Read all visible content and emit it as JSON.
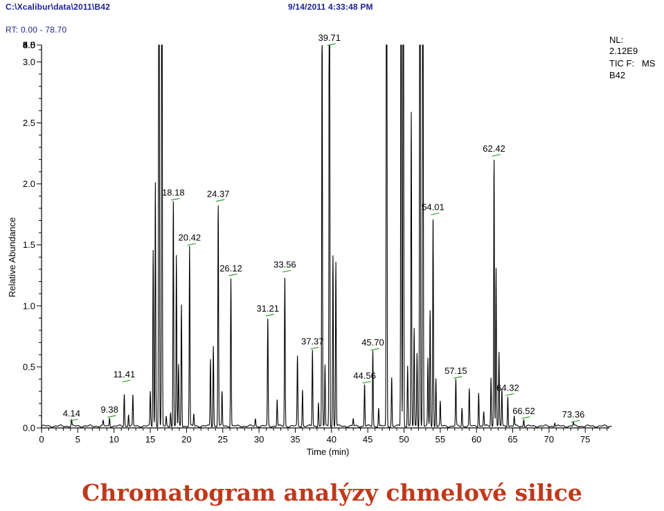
{
  "header": {
    "file_path": "C:\\Xcalibur\\data\\2011\\B42",
    "timestamp": "9/14/2011 4:33:48 PM",
    "rt_label": "RT:",
    "rt_range": "0.00 - 78.70"
  },
  "info_box": {
    "nl_label": "NL:",
    "nl_value": "2.12E9",
    "tic_label": "TIC F:",
    "tic_value": "MS",
    "sample": "B42"
  },
  "caption": "Chromatogram analýzy chmelové silice",
  "chart_data": {
    "type": "line",
    "title": "",
    "xlabel": "Time (min)",
    "ylabel": "Relative Abundance",
    "xlim": [
      0,
      78.7
    ],
    "ylim": [
      0,
      6.2
    ],
    "x_ticks": [
      0,
      5,
      10,
      15,
      20,
      25,
      30,
      35,
      40,
      45,
      50,
      55,
      60,
      65,
      70,
      75
    ],
    "y_ticks": [
      0.0,
      0.5,
      1.0,
      1.5,
      2.0,
      2.5,
      3.0,
      3.5,
      4.0,
      4.5,
      5.0,
      5.5,
      6.0
    ],
    "peaks": [
      {
        "rt": 4.14,
        "h": 0.05
      },
      {
        "rt": 8.5,
        "h": 0.04
      },
      {
        "rt": 9.38,
        "h": 0.07
      },
      {
        "rt": 11.41,
        "h": 0.27
      },
      {
        "rt": 12.0,
        "h": 0.1
      },
      {
        "rt": 12.6,
        "h": 0.25
      },
      {
        "rt": 15.0,
        "h": 0.28
      },
      {
        "rt": 15.4,
        "h": 1.45
      },
      {
        "rt": 15.7,
        "h": 2.0
      },
      {
        "rt": 16.2,
        "h": 6.5
      },
      {
        "rt": 16.6,
        "h": 6.5
      },
      {
        "rt": 17.2,
        "h": 0.08
      },
      {
        "rt": 17.8,
        "h": 0.12
      },
      {
        "rt": 18.18,
        "h": 1.85
      },
      {
        "rt": 18.6,
        "h": 1.4
      },
      {
        "rt": 18.9,
        "h": 0.5
      },
      {
        "rt": 19.3,
        "h": 1.0
      },
      {
        "rt": 20.42,
        "h": 1.48
      },
      {
        "rt": 21.0,
        "h": 0.1
      },
      {
        "rt": 23.3,
        "h": 0.55
      },
      {
        "rt": 23.7,
        "h": 0.66
      },
      {
        "rt": 24.37,
        "h": 1.82
      },
      {
        "rt": 24.9,
        "h": 0.28
      },
      {
        "rt": 26.12,
        "h": 1.22
      },
      {
        "rt": 29.5,
        "h": 0.06
      },
      {
        "rt": 31.21,
        "h": 0.89
      },
      {
        "rt": 32.5,
        "h": 0.22
      },
      {
        "rt": 33.56,
        "h": 1.24
      },
      {
        "rt": 35.3,
        "h": 0.57
      },
      {
        "rt": 36.0,
        "h": 0.3
      },
      {
        "rt": 37.37,
        "h": 0.63
      },
      {
        "rt": 38.2,
        "h": 0.2
      },
      {
        "rt": 38.7,
        "h": 3.45
      },
      {
        "rt": 39.1,
        "h": 0.5
      },
      {
        "rt": 39.71,
        "h": 5.95
      },
      {
        "rt": 40.2,
        "h": 1.4
      },
      {
        "rt": 40.6,
        "h": 1.35
      },
      {
        "rt": 43.0,
        "h": 0.06
      },
      {
        "rt": 44.56,
        "h": 0.35
      },
      {
        "rt": 45.7,
        "h": 0.62
      },
      {
        "rt": 46.5,
        "h": 0.15
      },
      {
        "rt": 47.6,
        "h": 6.5
      },
      {
        "rt": 48.3,
        "h": 0.4
      },
      {
        "rt": 49.6,
        "h": 5.5
      },
      {
        "rt": 49.9,
        "h": 6.5
      },
      {
        "rt": 50.5,
        "h": 0.5
      },
      {
        "rt": 51.0,
        "h": 2.57
      },
      {
        "rt": 51.4,
        "h": 0.8
      },
      {
        "rt": 51.8,
        "h": 0.6
      },
      {
        "rt": 52.2,
        "h": 6.5
      },
      {
        "rt": 52.6,
        "h": 6.5
      },
      {
        "rt": 53.3,
        "h": 0.55
      },
      {
        "rt": 53.6,
        "h": 0.95
      },
      {
        "rt": 54.01,
        "h": 1.73
      },
      {
        "rt": 54.4,
        "h": 0.4
      },
      {
        "rt": 55.0,
        "h": 0.2
      },
      {
        "rt": 57.15,
        "h": 0.38
      },
      {
        "rt": 58.0,
        "h": 0.15
      },
      {
        "rt": 59.0,
        "h": 0.3
      },
      {
        "rt": 60.3,
        "h": 0.28
      },
      {
        "rt": 61.0,
        "h": 0.12
      },
      {
        "rt": 62.0,
        "h": 0.4
      },
      {
        "rt": 62.42,
        "h": 2.2
      },
      {
        "rt": 62.7,
        "h": 1.3
      },
      {
        "rt": 63.1,
        "h": 0.6
      },
      {
        "rt": 63.5,
        "h": 0.3
      },
      {
        "rt": 64.32,
        "h": 0.25
      },
      {
        "rt": 65.2,
        "h": 0.08
      },
      {
        "rt": 66.52,
        "h": 0.06
      },
      {
        "rt": 70.8,
        "h": 0.03
      },
      {
        "rt": 73.36,
        "h": 0.03
      }
    ],
    "annotations": [
      {
        "label": "4.14",
        "rt": 4.14,
        "y": 0.06
      },
      {
        "label": "9.38",
        "rt": 9.38,
        "y": 0.09
      },
      {
        "label": "11.41",
        "rt": 11.41,
        "y": 0.38
      },
      {
        "label": "18.18",
        "rt": 18.18,
        "y": 1.87
      },
      {
        "label": "20.42",
        "rt": 20.42,
        "y": 1.5
      },
      {
        "label": "24.37",
        "rt": 24.37,
        "y": 1.86
      },
      {
        "label": "26.12",
        "rt": 26.12,
        "y": 1.25
      },
      {
        "label": "31.21",
        "rt": 31.21,
        "y": 0.92
      },
      {
        "label": "33.56",
        "rt": 33.56,
        "y": 1.28
      },
      {
        "label": "37.37",
        "rt": 37.37,
        "y": 0.65
      },
      {
        "label": "39.71",
        "rt": 39.71,
        "y": 5.98
      },
      {
        "label": "44.56",
        "rt": 44.56,
        "y": 0.37
      },
      {
        "label": "45.70",
        "rt": 45.7,
        "y": 0.64
      },
      {
        "label": "54.01",
        "rt": 54.01,
        "y": 1.75
      },
      {
        "label": "57.15",
        "rt": 57.15,
        "y": 0.41
      },
      {
        "label": "62.42",
        "rt": 62.42,
        "y": 2.23
      },
      {
        "label": "64.32",
        "rt": 64.32,
        "y": 0.27
      },
      {
        "label": "66.52",
        "rt": 66.52,
        "y": 0.08
      },
      {
        "label": "73.36",
        "rt": 73.36,
        "y": 0.05
      }
    ],
    "line_color": "#000000",
    "marker_color": "#2e9e2e",
    "header_color": "#1a1f8f",
    "caption_color": "#c0391b"
  }
}
